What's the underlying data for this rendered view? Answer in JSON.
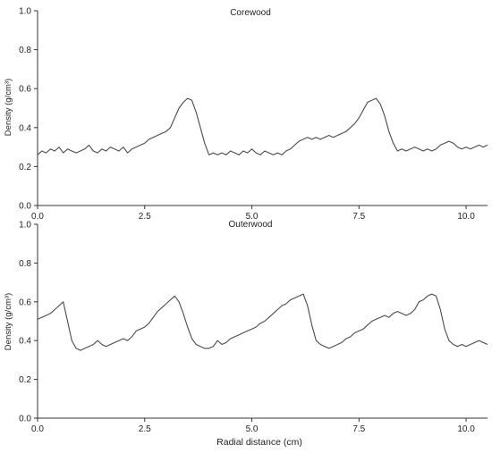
{
  "chart_data": {
    "type": "line",
    "xlabel": "Radial distance (cm)",
    "xlim": [
      0,
      10.5
    ],
    "x_ticks": [
      "0.0",
      "2.5",
      "5.0",
      "7.5",
      "10.0"
    ],
    "x_tick_values": [
      0,
      2.5,
      5,
      7.5,
      10
    ],
    "panels": [
      {
        "title": "Corewood",
        "ylabel": "Density (g/cm³)",
        "ylim": [
          0,
          1
        ],
        "y_ticks": [
          "0.0",
          "0.2",
          "0.4",
          "0.6",
          "0.8",
          "1.0"
        ],
        "y_tick_values": [
          0,
          0.2,
          0.4,
          0.6,
          0.8,
          1.0
        ],
        "series": [
          {
            "x": [
              0,
              0.1,
              0.2,
              0.3,
              0.4,
              0.5,
              0.6,
              0.7,
              0.8,
              0.9,
              1.0,
              1.1,
              1.2,
              1.3,
              1.4,
              1.5,
              1.6,
              1.7,
              1.8,
              1.9,
              2.0,
              2.1,
              2.2,
              2.3,
              2.4,
              2.5,
              2.6,
              2.7,
              2.8,
              2.9,
              3.0,
              3.1,
              3.2,
              3.3,
              3.4,
              3.5,
              3.6,
              3.7,
              3.8,
              3.9,
              4.0,
              4.1,
              4.2,
              4.3,
              4.4,
              4.5,
              4.6,
              4.7,
              4.8,
              4.9,
              5.0,
              5.1,
              5.2,
              5.3,
              5.4,
              5.5,
              5.6,
              5.7,
              5.8,
              5.9,
              6.0,
              6.1,
              6.2,
              6.3,
              6.4,
              6.5,
              6.6,
              6.7,
              6.8,
              6.9,
              7.0,
              7.1,
              7.2,
              7.3,
              7.4,
              7.5,
              7.6,
              7.7,
              7.8,
              7.9,
              8.0,
              8.1,
              8.2,
              8.3,
              8.4,
              8.5,
              8.6,
              8.7,
              8.8,
              8.9,
              9.0,
              9.1,
              9.2,
              9.3,
              9.4,
              9.5,
              9.6,
              9.7,
              9.8,
              9.9,
              10.0,
              10.1,
              10.2,
              10.3,
              10.4,
              10.5
            ],
            "y": [
              0.26,
              0.28,
              0.27,
              0.29,
              0.28,
              0.3,
              0.27,
              0.29,
              0.28,
              0.27,
              0.28,
              0.29,
              0.31,
              0.28,
              0.27,
              0.29,
              0.28,
              0.3,
              0.29,
              0.28,
              0.3,
              0.27,
              0.29,
              0.3,
              0.31,
              0.32,
              0.34,
              0.35,
              0.36,
              0.37,
              0.38,
              0.4,
              0.45,
              0.5,
              0.53,
              0.55,
              0.54,
              0.48,
              0.4,
              0.32,
              0.26,
              0.27,
              0.26,
              0.27,
              0.26,
              0.28,
              0.27,
              0.26,
              0.28,
              0.27,
              0.29,
              0.27,
              0.26,
              0.28,
              0.27,
              0.26,
              0.27,
              0.26,
              0.28,
              0.29,
              0.31,
              0.33,
              0.34,
              0.35,
              0.34,
              0.35,
              0.34,
              0.35,
              0.36,
              0.35,
              0.36,
              0.37,
              0.38,
              0.4,
              0.42,
              0.45,
              0.49,
              0.53,
              0.54,
              0.55,
              0.52,
              0.46,
              0.38,
              0.32,
              0.28,
              0.29,
              0.28,
              0.29,
              0.3,
              0.29,
              0.28,
              0.29,
              0.28,
              0.29,
              0.31,
              0.32,
              0.33,
              0.32,
              0.3,
              0.29,
              0.3,
              0.29,
              0.3,
              0.31,
              0.3,
              0.31
            ]
          }
        ]
      },
      {
        "title": "Outerwood",
        "ylabel": "Density (g/cm³)",
        "ylim": [
          0,
          1
        ],
        "y_ticks": [
          "0.0",
          "0.2",
          "0.4",
          "0.6",
          "0.8",
          "1.0"
        ],
        "y_tick_values": [
          0,
          0.2,
          0.4,
          0.6,
          0.8,
          1.0
        ],
        "series": [
          {
            "x": [
              0,
              0.1,
              0.2,
              0.3,
              0.4,
              0.5,
              0.6,
              0.7,
              0.8,
              0.9,
              1.0,
              1.1,
              1.2,
              1.3,
              1.4,
              1.5,
              1.6,
              1.7,
              1.8,
              1.9,
              2.0,
              2.1,
              2.2,
              2.3,
              2.4,
              2.5,
              2.6,
              2.7,
              2.8,
              2.9,
              3.0,
              3.1,
              3.2,
              3.3,
              3.4,
              3.5,
              3.6,
              3.7,
              3.8,
              3.9,
              4.0,
              4.1,
              4.2,
              4.3,
              4.4,
              4.5,
              4.6,
              4.7,
              4.8,
              4.9,
              5.0,
              5.1,
              5.2,
              5.3,
              5.4,
              5.5,
              5.6,
              5.7,
              5.8,
              5.9,
              6.0,
              6.1,
              6.2,
              6.3,
              6.4,
              6.5,
              6.6,
              6.7,
              6.8,
              6.9,
              7.0,
              7.1,
              7.2,
              7.3,
              7.4,
              7.5,
              7.6,
              7.7,
              7.8,
              7.9,
              8.0,
              8.1,
              8.2,
              8.3,
              8.4,
              8.5,
              8.6,
              8.7,
              8.8,
              8.9,
              9.0,
              9.1,
              9.2,
              9.3,
              9.4,
              9.5,
              9.6,
              9.7,
              9.8,
              9.9,
              10.0,
              10.1,
              10.2,
              10.3,
              10.4,
              10.5
            ],
            "y": [
              0.51,
              0.52,
              0.53,
              0.54,
              0.56,
              0.58,
              0.6,
              0.5,
              0.4,
              0.36,
              0.35,
              0.36,
              0.37,
              0.38,
              0.4,
              0.38,
              0.37,
              0.38,
              0.39,
              0.4,
              0.41,
              0.4,
              0.42,
              0.45,
              0.46,
              0.47,
              0.49,
              0.52,
              0.55,
              0.57,
              0.59,
              0.61,
              0.63,
              0.6,
              0.54,
              0.47,
              0.41,
              0.38,
              0.37,
              0.36,
              0.36,
              0.37,
              0.4,
              0.38,
              0.39,
              0.41,
              0.42,
              0.43,
              0.44,
              0.45,
              0.46,
              0.47,
              0.49,
              0.5,
              0.52,
              0.54,
              0.56,
              0.58,
              0.59,
              0.61,
              0.62,
              0.63,
              0.64,
              0.58,
              0.48,
              0.4,
              0.38,
              0.37,
              0.36,
              0.37,
              0.38,
              0.39,
              0.41,
              0.42,
              0.44,
              0.45,
              0.46,
              0.48,
              0.5,
              0.51,
              0.52,
              0.53,
              0.52,
              0.54,
              0.55,
              0.54,
              0.53,
              0.54,
              0.56,
              0.6,
              0.61,
              0.63,
              0.64,
              0.63,
              0.56,
              0.46,
              0.4,
              0.38,
              0.37,
              0.38,
              0.37,
              0.38,
              0.39,
              0.4,
              0.39,
              0.38
            ]
          }
        ]
      }
    ]
  }
}
